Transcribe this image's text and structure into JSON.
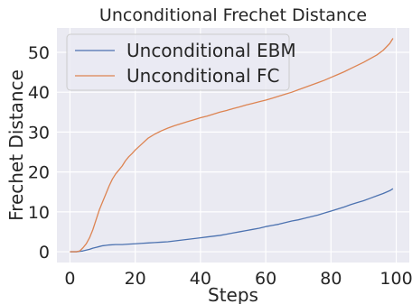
{
  "chart_data": {
    "type": "line",
    "title": "Unconditional Frechet Distance",
    "xlabel": "Steps",
    "ylabel": "Frechet Distance",
    "xlim": [
      -4,
      104
    ],
    "ylim": [
      -2.7,
      56.1
    ],
    "xticks": [
      0,
      20,
      40,
      60,
      80,
      100
    ],
    "yticks": [
      0,
      10,
      20,
      30,
      40,
      50
    ],
    "grid": true,
    "legend_position": "upper-left",
    "series": [
      {
        "name": "Unconditional EBM",
        "color": "#4c72b0",
        "x": [
          0,
          2,
          3,
          4,
          5,
          6,
          7,
          8,
          9,
          10,
          11,
          12,
          14,
          16,
          18,
          20,
          22,
          24,
          26,
          28,
          30,
          32,
          34,
          36,
          38,
          40,
          42,
          44,
          46,
          48,
          50,
          52,
          54,
          56,
          58,
          60,
          62,
          64,
          66,
          68,
          70,
          72,
          74,
          76,
          78,
          80,
          82,
          84,
          86,
          88,
          90,
          92,
          94,
          96,
          98,
          99
        ],
        "values": [
          0.0,
          0.0,
          0.1,
          0.2,
          0.4,
          0.6,
          0.9,
          1.1,
          1.3,
          1.5,
          1.6,
          1.7,
          1.8,
          1.8,
          1.9,
          2.0,
          2.1,
          2.2,
          2.3,
          2.4,
          2.5,
          2.7,
          2.9,
          3.1,
          3.3,
          3.5,
          3.7,
          3.9,
          4.1,
          4.4,
          4.7,
          5.0,
          5.3,
          5.6,
          5.9,
          6.3,
          6.6,
          6.9,
          7.3,
          7.7,
          8.0,
          8.4,
          8.8,
          9.2,
          9.7,
          10.2,
          10.7,
          11.2,
          11.8,
          12.3,
          12.8,
          13.4,
          14.0,
          14.6,
          15.3,
          15.8
        ]
      },
      {
        "name": "Unconditional FC",
        "color": "#dd8452",
        "x": [
          0,
          1,
          2,
          3,
          4,
          5,
          6,
          7,
          8,
          9,
          10,
          11,
          12,
          13,
          14,
          15,
          16,
          17,
          18,
          19,
          20,
          22,
          24,
          26,
          28,
          30,
          32,
          34,
          36,
          38,
          40,
          42,
          44,
          46,
          48,
          50,
          52,
          54,
          56,
          58,
          60,
          62,
          64,
          66,
          68,
          70,
          72,
          74,
          76,
          78,
          80,
          82,
          84,
          86,
          88,
          90,
          92,
          94,
          96,
          98,
          99
        ],
        "values": [
          0.0,
          0.0,
          0.0,
          0.2,
          1.0,
          2.0,
          3.5,
          5.5,
          8.0,
          10.5,
          12.5,
          14.5,
          16.5,
          18.2,
          19.5,
          20.5,
          21.5,
          22.8,
          23.8,
          24.6,
          25.5,
          27.0,
          28.5,
          29.5,
          30.3,
          31.0,
          31.6,
          32.1,
          32.6,
          33.1,
          33.6,
          34.0,
          34.5,
          35.0,
          35.4,
          35.9,
          36.3,
          36.8,
          37.2,
          37.6,
          38.0,
          38.5,
          39.0,
          39.5,
          40.0,
          40.6,
          41.2,
          41.8,
          42.4,
          43.0,
          43.7,
          44.4,
          45.1,
          45.9,
          46.7,
          47.5,
          48.4,
          49.3,
          50.5,
          52.2,
          53.5
        ]
      }
    ]
  }
}
